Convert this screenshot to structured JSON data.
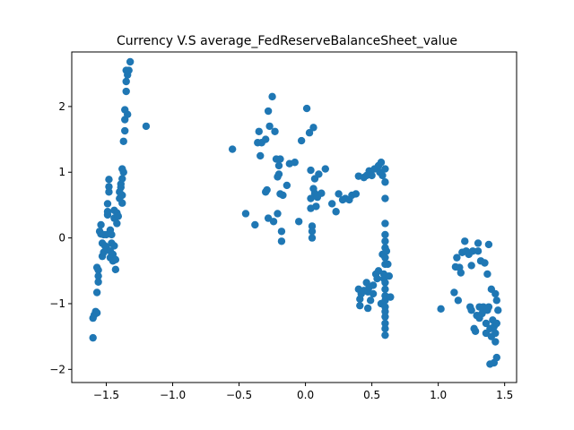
{
  "chart_data": {
    "type": "scatter",
    "title": "Currency V.S average_FedReserveBalanceSheet_value",
    "xlabel": "",
    "ylabel": "",
    "xlim": [
      -1.76,
      1.59
    ],
    "ylim": [
      -2.2,
      2.83
    ],
    "xticks": [
      -1.5,
      -1.0,
      -0.5,
      0.0,
      0.5,
      1.0,
      1.5
    ],
    "xtick_labels": [
      "−1.5",
      "−1.0",
      "−0.5",
      "0.0",
      "0.5",
      "1.0",
      "1.5"
    ],
    "yticks": [
      -2,
      -1,
      0,
      1,
      2
    ],
    "ytick_labels": [
      "−2",
      "−1",
      "0",
      "1",
      "2"
    ],
    "grid": false,
    "color": "#1f77b4",
    "points": [
      [
        -1.6,
        -1.52
      ],
      [
        -1.6,
        -1.22
      ],
      [
        -1.59,
        -1.17
      ],
      [
        -1.58,
        -1.12
      ],
      [
        -1.57,
        -1.14
      ],
      [
        -1.57,
        -0.83
      ],
      [
        -1.57,
        -0.45
      ],
      [
        -1.56,
        -0.49
      ],
      [
        -1.56,
        -0.58
      ],
      [
        -1.56,
        -0.67
      ],
      [
        -1.55,
        0.1
      ],
      [
        -1.54,
        0.2
      ],
      [
        -1.54,
        0.06
      ],
      [
        -1.53,
        -0.08
      ],
      [
        -1.53,
        -0.28
      ],
      [
        -1.52,
        -0.22
      ],
      [
        -1.52,
        0.05
      ],
      [
        -1.51,
        -0.12
      ],
      [
        -1.5,
        0.05
      ],
      [
        -1.5,
        -0.15
      ],
      [
        -1.49,
        0.4
      ],
      [
        -1.49,
        0.52
      ],
      [
        -1.49,
        0.35
      ],
      [
        -1.48,
        0.7
      ],
      [
        -1.48,
        0.78
      ],
      [
        -1.48,
        0.89
      ],
      [
        -1.47,
        -0.2
      ],
      [
        -1.47,
        -0.3
      ],
      [
        -1.47,
        0.12
      ],
      [
        -1.46,
        0.05
      ],
      [
        -1.46,
        -0.08
      ],
      [
        -1.45,
        -0.25
      ],
      [
        -1.45,
        -0.35
      ],
      [
        -1.44,
        0.42
      ],
      [
        -1.44,
        0.3
      ],
      [
        -1.44,
        -0.12
      ],
      [
        -1.43,
        -0.33
      ],
      [
        -1.43,
        -0.48
      ],
      [
        -1.42,
        0.22
      ],
      [
        -1.42,
        0.38
      ],
      [
        -1.41,
        0.33
      ],
      [
        -1.4,
        0.6
      ],
      [
        -1.4,
        0.7
      ],
      [
        -1.39,
        0.77
      ],
      [
        -1.39,
        0.82
      ],
      [
        -1.38,
        0.53
      ],
      [
        -1.38,
        0.65
      ],
      [
        -1.38,
        0.9
      ],
      [
        -1.38,
        1.05
      ],
      [
        -1.37,
        1.0
      ],
      [
        -1.37,
        1.47
      ],
      [
        -1.36,
        1.63
      ],
      [
        -1.36,
        1.8
      ],
      [
        -1.36,
        1.95
      ],
      [
        -1.35,
        2.23
      ],
      [
        -1.35,
        2.38
      ],
      [
        -1.35,
        2.55
      ],
      [
        -1.34,
        1.88
      ],
      [
        -1.34,
        2.48
      ],
      [
        -1.33,
        2.55
      ],
      [
        -1.32,
        2.68
      ],
      [
        -1.2,
        1.7
      ],
      [
        -0.55,
        1.35
      ],
      [
        -0.45,
        0.37
      ],
      [
        -0.38,
        0.2
      ],
      [
        -0.36,
        1.45
      ],
      [
        -0.35,
        1.62
      ],
      [
        -0.34,
        1.25
      ],
      [
        -0.33,
        1.45
      ],
      [
        -0.3,
        1.5
      ],
      [
        -0.3,
        0.7
      ],
      [
        -0.29,
        0.73
      ],
      [
        -0.28,
        0.3
      ],
      [
        -0.28,
        1.93
      ],
      [
        -0.27,
        1.7
      ],
      [
        -0.25,
        2.15
      ],
      [
        -0.24,
        0.25
      ],
      [
        -0.23,
        1.62
      ],
      [
        -0.22,
        1.2
      ],
      [
        -0.21,
        0.93
      ],
      [
        -0.21,
        0.37
      ],
      [
        -0.2,
        1.1
      ],
      [
        -0.2,
        0.97
      ],
      [
        -0.19,
        1.2
      ],
      [
        -0.19,
        0.67
      ],
      [
        -0.18,
        -0.05
      ],
      [
        -0.18,
        0.1
      ],
      [
        -0.17,
        0.65
      ],
      [
        -0.14,
        0.8
      ],
      [
        -0.12,
        1.13
      ],
      [
        -0.08,
        1.15
      ],
      [
        -0.05,
        0.25
      ],
      [
        -0.03,
        1.48
      ],
      [
        0.01,
        1.97
      ],
      [
        0.03,
        1.6
      ],
      [
        0.04,
        1.03
      ],
      [
        0.04,
        0.6
      ],
      [
        0.04,
        0.45
      ],
      [
        0.05,
        0.18
      ],
      [
        0.05,
        0.0
      ],
      [
        0.05,
        0.1
      ],
      [
        0.06,
        1.68
      ],
      [
        0.06,
        0.75
      ],
      [
        0.07,
        0.68
      ],
      [
        0.07,
        0.9
      ],
      [
        0.08,
        0.48
      ],
      [
        0.09,
        0.62
      ],
      [
        0.1,
        0.97
      ],
      [
        0.12,
        0.68
      ],
      [
        0.15,
        1.05
      ],
      [
        0.2,
        0.52
      ],
      [
        0.23,
        0.4
      ],
      [
        0.25,
        0.67
      ],
      [
        0.28,
        0.58
      ],
      [
        0.3,
        0.6
      ],
      [
        0.33,
        0.58
      ],
      [
        0.35,
        0.65
      ],
      [
        0.38,
        0.67
      ],
      [
        0.4,
        0.94
      ],
      [
        0.4,
        -0.78
      ],
      [
        0.41,
        -0.93
      ],
      [
        0.41,
        -1.03
      ],
      [
        0.42,
        -0.85
      ],
      [
        0.44,
        -0.8
      ],
      [
        0.44,
        0.92
      ],
      [
        0.46,
        0.95
      ],
      [
        0.46,
        -0.68
      ],
      [
        0.47,
        -1.07
      ],
      [
        0.47,
        -0.82
      ],
      [
        0.48,
        1.02
      ],
      [
        0.48,
        -0.75
      ],
      [
        0.49,
        -0.95
      ],
      [
        0.5,
        0.95
      ],
      [
        0.51,
        -0.72
      ],
      [
        0.51,
        -0.85
      ],
      [
        0.52,
        1.05
      ],
      [
        0.53,
        -0.55
      ],
      [
        0.54,
        -0.62
      ],
      [
        0.55,
        1.1
      ],
      [
        0.55,
        -0.5
      ],
      [
        0.56,
        1.0
      ],
      [
        0.57,
        1.15
      ],
      [
        0.57,
        -1.0
      ],
      [
        0.58,
        0.95
      ],
      [
        0.58,
        -0.25
      ],
      [
        0.59,
        -0.55
      ],
      [
        0.59,
        -0.62
      ],
      [
        0.6,
        1.05
      ],
      [
        0.6,
        0.85
      ],
      [
        0.6,
        0.6
      ],
      [
        0.6,
        0.22
      ],
      [
        0.6,
        0.05
      ],
      [
        0.6,
        -0.05
      ],
      [
        0.6,
        -0.15
      ],
      [
        0.6,
        -0.3
      ],
      [
        0.6,
        -0.4
      ],
      [
        0.6,
        -0.68
      ],
      [
        0.6,
        -0.78
      ],
      [
        0.6,
        -0.88
      ],
      [
        0.6,
        -0.95
      ],
      [
        0.6,
        -1.05
      ],
      [
        0.6,
        -1.12
      ],
      [
        0.6,
        -1.2
      ],
      [
        0.6,
        -1.3
      ],
      [
        0.6,
        -1.38
      ],
      [
        0.6,
        -1.48
      ],
      [
        0.61,
        -0.2
      ],
      [
        0.62,
        -0.4
      ],
      [
        0.63,
        -0.58
      ],
      [
        0.64,
        -0.9
      ],
      [
        1.02,
        -1.08
      ],
      [
        1.12,
        -0.83
      ],
      [
        1.13,
        -0.44
      ],
      [
        1.14,
        -0.3
      ],
      [
        1.15,
        -0.95
      ],
      [
        1.16,
        -0.45
      ],
      [
        1.17,
        -0.53
      ],
      [
        1.18,
        -0.22
      ],
      [
        1.2,
        -0.05
      ],
      [
        1.21,
        -0.2
      ],
      [
        1.23,
        -0.25
      ],
      [
        1.24,
        -1.05
      ],
      [
        1.25,
        -1.1
      ],
      [
        1.25,
        -0.42
      ],
      [
        1.26,
        -0.2
      ],
      [
        1.27,
        -1.38
      ],
      [
        1.28,
        -1.42
      ],
      [
        1.29,
        -1.18
      ],
      [
        1.3,
        -0.08
      ],
      [
        1.3,
        -0.2
      ],
      [
        1.31,
        -1.05
      ],
      [
        1.31,
        -1.22
      ],
      [
        1.32,
        -0.35
      ],
      [
        1.33,
        -1.15
      ],
      [
        1.34,
        -1.05
      ],
      [
        1.35,
        -0.38
      ],
      [
        1.36,
        -1.3
      ],
      [
        1.36,
        -1.45
      ],
      [
        1.37,
        -0.55
      ],
      [
        1.37,
        -1.1
      ],
      [
        1.38,
        -1.05
      ],
      [
        1.38,
        -0.1
      ],
      [
        1.39,
        -1.38
      ],
      [
        1.39,
        -1.92
      ],
      [
        1.4,
        -0.78
      ],
      [
        1.4,
        -1.5
      ],
      [
        1.41,
        -1.25
      ],
      [
        1.42,
        -1.9
      ],
      [
        1.42,
        -1.35
      ],
      [
        1.43,
        -0.85
      ],
      [
        1.43,
        -1.45
      ],
      [
        1.43,
        -1.58
      ],
      [
        1.44,
        -1.82
      ],
      [
        1.44,
        -1.3
      ],
      [
        1.44,
        -0.95
      ],
      [
        1.45,
        -1.1
      ]
    ]
  }
}
